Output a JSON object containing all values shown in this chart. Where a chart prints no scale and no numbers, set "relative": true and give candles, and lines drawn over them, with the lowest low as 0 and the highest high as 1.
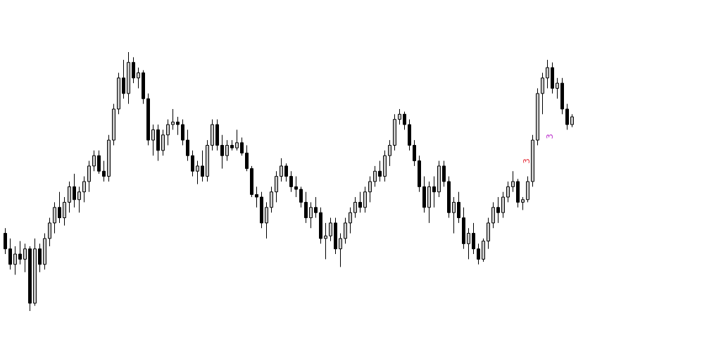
{
  "chart_data": {
    "type": "candlestick",
    "relative": true,
    "annotations": [
      "3",
      "3"
    ],
    "categories": [
      null,
      null,
      null,
      null,
      null,
      null,
      null,
      null,
      null,
      null,
      null,
      null,
      null,
      null,
      null,
      null,
      null,
      null,
      null,
      null,
      null,
      null,
      null,
      null,
      null,
      null,
      null,
      null,
      null,
      null,
      null,
      null,
      null,
      null,
      null,
      null,
      null,
      null,
      null,
      null,
      null,
      null,
      null,
      null,
      null,
      null,
      null,
      null,
      null,
      null,
      null,
      null,
      null,
      null,
      null,
      null,
      null,
      null,
      null,
      null,
      null,
      null,
      null,
      null,
      null,
      null,
      null,
      null,
      null,
      null,
      null,
      null,
      null,
      null,
      null,
      null,
      null,
      null,
      null,
      null,
      null,
      null,
      null,
      null,
      null,
      null,
      null,
      null,
      null,
      null,
      null,
      null,
      null,
      null,
      null,
      null,
      null,
      null,
      null,
      null,
      null,
      null,
      null,
      null,
      null,
      null,
      null,
      null,
      null,
      null,
      null,
      null,
      null,
      null,
      null,
      null
    ],
    "series": [
      {
        "color": "#000000",
        "ohlc": [
          [
            0.3,
            0.32,
            0.22,
            0.24
          ],
          [
            0.24,
            0.28,
            0.16,
            0.18
          ],
          [
            0.18,
            0.25,
            0.14,
            0.22
          ],
          [
            0.22,
            0.27,
            0.18,
            0.2
          ],
          [
            0.2,
            0.26,
            0.15,
            0.24
          ],
          [
            0.24,
            0.25,
            0,
            0.03
          ],
          [
            0.03,
            0.28,
            0.02,
            0.24
          ],
          [
            0.24,
            0.26,
            0.15,
            0.18
          ],
          [
            0.18,
            0.3,
            0.16,
            0.28
          ],
          [
            0.28,
            0.36,
            0.25,
            0.34
          ],
          [
            0.34,
            0.42,
            0.3,
            0.4
          ],
          [
            0.4,
            0.46,
            0.34,
            0.36
          ],
          [
            0.36,
            0.44,
            0.33,
            0.42
          ],
          [
            0.42,
            0.5,
            0.38,
            0.48
          ],
          [
            0.48,
            0.53,
            0.4,
            0.43
          ],
          [
            0.43,
            0.48,
            0.38,
            0.46
          ],
          [
            0.46,
            0.52,
            0.42,
            0.5
          ],
          [
            0.5,
            0.58,
            0.46,
            0.56
          ],
          [
            0.56,
            0.62,
            0.54,
            0.6
          ],
          [
            0.6,
            0.62,
            0.53,
            0.54
          ],
          [
            0.54,
            0.58,
            0.5,
            0.52
          ],
          [
            0.52,
            0.68,
            0.5,
            0.66
          ],
          [
            0.66,
            0.8,
            0.64,
            0.78
          ],
          [
            0.78,
            0.92,
            0.76,
            0.9
          ],
          [
            0.9,
            0.97,
            0.82,
            0.84
          ],
          [
            0.84,
            1,
            0.8,
            0.96
          ],
          [
            0.96,
            0.98,
            0.88,
            0.9
          ],
          [
            0.9,
            0.94,
            0.86,
            0.92
          ],
          [
            0.92,
            0.93,
            0.8,
            0.82
          ],
          [
            0.82,
            0.84,
            0.64,
            0.66
          ],
          [
            0.66,
            0.72,
            0.6,
            0.7
          ],
          [
            0.7,
            0.72,
            0.58,
            0.62
          ],
          [
            0.62,
            0.7,
            0.6,
            0.68
          ],
          [
            0.68,
            0.74,
            0.64,
            0.72
          ],
          [
            0.72,
            0.78,
            0.7,
            0.73
          ],
          [
            0.73,
            0.75,
            0.68,
            0.72
          ],
          [
            0.72,
            0.74,
            0.64,
            0.66
          ],
          [
            0.66,
            0.7,
            0.58,
            0.6
          ],
          [
            0.6,
            0.62,
            0.52,
            0.54
          ],
          [
            0.54,
            0.58,
            0.49,
            0.56
          ],
          [
            0.56,
            0.62,
            0.5,
            0.52
          ],
          [
            0.52,
            0.66,
            0.5,
            0.64
          ],
          [
            0.64,
            0.74,
            0.62,
            0.72
          ],
          [
            0.72,
            0.74,
            0.62,
            0.64
          ],
          [
            0.64,
            0.68,
            0.55,
            0.6
          ],
          [
            0.6,
            0.66,
            0.58,
            0.64
          ],
          [
            0.64,
            0.66,
            0.62,
            0.63
          ],
          [
            0.63,
            0.7,
            0.62,
            0.65
          ],
          [
            0.65,
            0.67,
            0.6,
            0.61
          ],
          [
            0.61,
            0.64,
            0.54,
            0.55
          ],
          [
            0.55,
            0.56,
            0.44,
            0.45
          ],
          [
            0.45,
            0.48,
            0.4,
            0.44
          ],
          [
            0.44,
            0.46,
            0.32,
            0.34
          ],
          [
            0.34,
            0.42,
            0.28,
            0.4
          ],
          [
            0.4,
            0.48,
            0.38,
            0.46
          ],
          [
            0.46,
            0.54,
            0.42,
            0.52
          ],
          [
            0.52,
            0.59,
            0.5,
            0.56
          ],
          [
            0.56,
            0.57,
            0.5,
            0.52
          ],
          [
            0.52,
            0.54,
            0.46,
            0.48
          ],
          [
            0.48,
            0.52,
            0.44,
            0.47
          ],
          [
            0.47,
            0.48,
            0.4,
            0.42
          ],
          [
            0.42,
            0.46,
            0.34,
            0.36
          ],
          [
            0.36,
            0.42,
            0.32,
            0.4
          ],
          [
            0.4,
            0.44,
            0.36,
            0.38
          ],
          [
            0.38,
            0.4,
            0.26,
            0.28
          ],
          [
            0.28,
            0.34,
            0.2,
            0.29
          ],
          [
            0.29,
            0.36,
            0.27,
            0.34
          ],
          [
            0.34,
            0.36,
            0.22,
            0.24
          ],
          [
            0.24,
            0.3,
            0.17,
            0.28
          ],
          [
            0.28,
            0.36,
            0.26,
            0.34
          ],
          [
            0.34,
            0.4,
            0.3,
            0.38
          ],
          [
            0.38,
            0.44,
            0.36,
            0.42
          ],
          [
            0.42,
            0.46,
            0.38,
            0.4
          ],
          [
            0.4,
            0.48,
            0.38,
            0.46
          ],
          [
            0.46,
            0.52,
            0.42,
            0.5
          ],
          [
            0.5,
            0.56,
            0.48,
            0.54
          ],
          [
            0.54,
            0.58,
            0.5,
            0.52
          ],
          [
            0.52,
            0.62,
            0.5,
            0.6
          ],
          [
            0.6,
            0.66,
            0.56,
            0.64
          ],
          [
            0.64,
            0.76,
            0.62,
            0.74
          ],
          [
            0.74,
            0.78,
            0.72,
            0.76
          ],
          [
            0.76,
            0.77,
            0.7,
            0.72
          ],
          [
            0.72,
            0.74,
            0.62,
            0.64
          ],
          [
            0.64,
            0.66,
            0.56,
            0.58
          ],
          [
            0.58,
            0.6,
            0.46,
            0.48
          ],
          [
            0.48,
            0.52,
            0.38,
            0.4
          ],
          [
            0.4,
            0.5,
            0.34,
            0.48
          ],
          [
            0.48,
            0.52,
            0.4,
            0.46
          ],
          [
            0.46,
            0.58,
            0.44,
            0.56
          ],
          [
            0.56,
            0.58,
            0.48,
            0.5
          ],
          [
            0.5,
            0.52,
            0.36,
            0.38
          ],
          [
            0.38,
            0.44,
            0.3,
            0.42
          ],
          [
            0.42,
            0.46,
            0.34,
            0.36
          ],
          [
            0.36,
            0.4,
            0.24,
            0.26
          ],
          [
            0.26,
            0.32,
            0.2,
            0.3
          ],
          [
            0.3,
            0.34,
            0.22,
            0.24
          ],
          [
            0.24,
            0.26,
            0.18,
            0.2
          ],
          [
            0.2,
            0.28,
            0.19,
            0.27
          ],
          [
            0.27,
            0.36,
            0.24,
            0.34
          ],
          [
            0.34,
            0.42,
            0.32,
            0.4
          ],
          [
            0.4,
            0.44,
            0.34,
            0.38
          ],
          [
            0.38,
            0.46,
            0.36,
            0.44
          ],
          [
            0.44,
            0.5,
            0.42,
            0.48
          ],
          [
            0.48,
            0.54,
            0.46,
            0.5
          ],
          [
            0.5,
            0.51,
            0.4,
            0.42
          ],
          [
            0.42,
            0.44,
            0.39,
            0.43
          ],
          [
            0.43,
            0.52,
            0.42,
            0.5
          ],
          [
            0.5,
            0.68,
            0.48,
            0.66
          ],
          [
            0.66,
            0.86,
            0.64,
            0.84
          ],
          [
            0.84,
            0.92,
            0.76,
            0.9
          ],
          [
            0.9,
            0.97,
            0.86,
            0.94
          ],
          [
            0.94,
            0.96,
            0.84,
            0.86
          ],
          [
            0.86,
            0.9,
            0.82,
            0.88
          ],
          [
            0.88,
            0.9,
            0.76,
            0.78
          ],
          [
            0.78,
            0.8,
            0.7,
            0.72
          ],
          [
            0.72,
            0.76,
            0.71,
            0.75
          ]
        ]
      }
    ]
  }
}
